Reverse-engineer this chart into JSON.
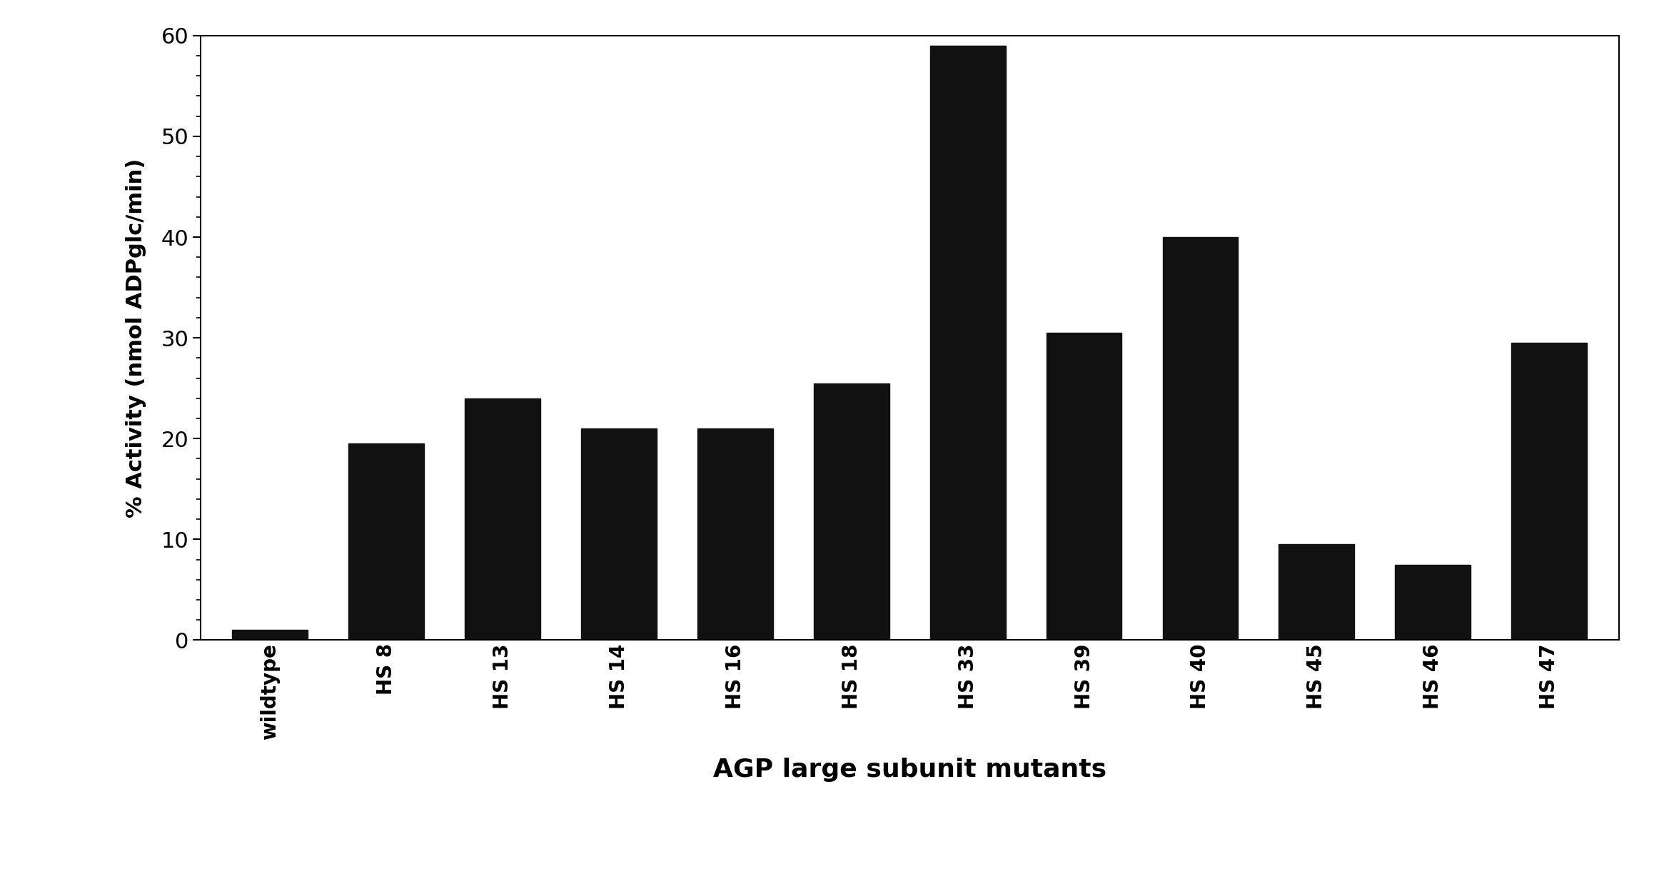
{
  "categories": [
    "wildtype",
    "HS 8",
    "HS 13",
    "HS 14",
    "HS 16",
    "HS 18",
    "HS 33",
    "HS 39",
    "HS 40",
    "HS 45",
    "HS 46",
    "HS 47"
  ],
  "values": [
    1.0,
    19.5,
    24.0,
    21.0,
    21.0,
    25.5,
    59.0,
    30.5,
    40.0,
    9.5,
    7.5,
    29.5
  ],
  "bar_color": "#111111",
  "bar_width": 0.65,
  "xlabel": "AGP large subunit mutants",
  "ylabel": "% Activity (nmol ADPglc/min)",
  "ylim": [
    0,
    60
  ],
  "yticks": [
    0,
    10,
    20,
    30,
    40,
    50,
    60
  ],
  "xlabel_fontsize": 26,
  "ylabel_fontsize": 22,
  "tick_fontsize": 22,
  "xtick_fontsize": 20,
  "background_color": "#ffffff"
}
